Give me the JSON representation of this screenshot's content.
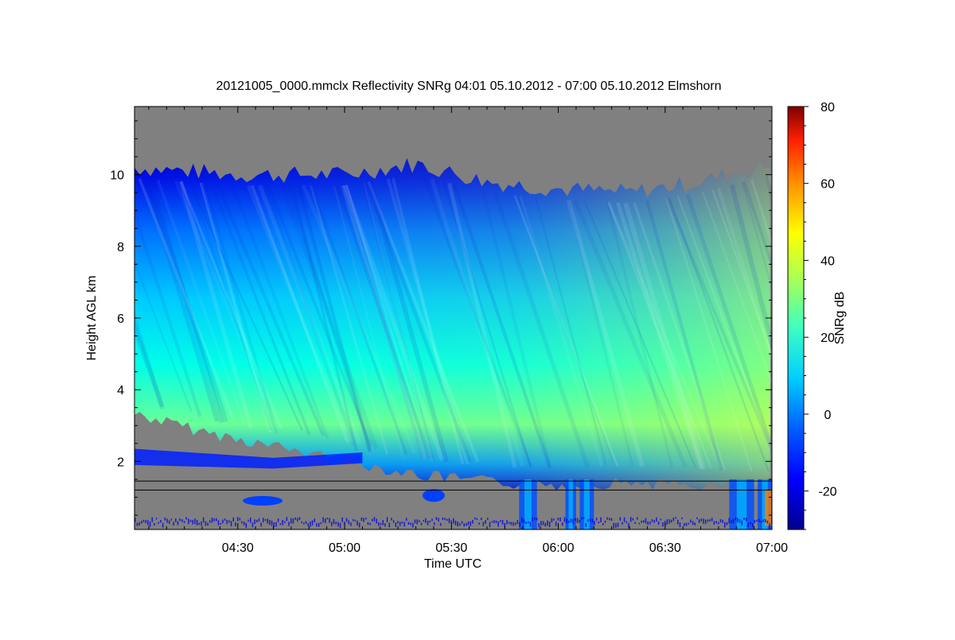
{
  "chart_data": {
    "type": "heatmap",
    "title": "20121005_0000.mmclx Reflectivity SNRg   04:01 05.10.2012 - 07:00 05.10.2012 Elmshorn",
    "xlabel": "Time UTC",
    "ylabel": "Height AGL km",
    "colorbar_label": "SNRg dB",
    "x_range": [
      "04:01",
      "07:00"
    ],
    "x_ticks": [
      "04:30",
      "05:00",
      "05:30",
      "06:00",
      "06:30",
      "07:00"
    ],
    "y_range": [
      0.1,
      11.9
    ],
    "y_ticks": [
      2,
      4,
      6,
      8,
      10
    ],
    "colorbar_range": [
      -30,
      80
    ],
    "colorbar_ticks": [
      -20,
      0,
      20,
      40,
      60,
      80
    ],
    "colormap": "jet",
    "missing_color": "#808080",
    "cloud_top_profile": [
      {
        "t": "04:01",
        "h": 10.2
      },
      {
        "t": "04:30",
        "h": 10.0
      },
      {
        "t": "05:00",
        "h": 10.0
      },
      {
        "t": "05:20",
        "h": 10.3
      },
      {
        "t": "05:40",
        "h": 9.8
      },
      {
        "t": "06:00",
        "h": 9.6
      },
      {
        "t": "06:20",
        "h": 9.5
      },
      {
        "t": "06:40",
        "h": 9.8
      },
      {
        "t": "07:00",
        "h": 10.3
      }
    ],
    "cloud_base_profile": [
      {
        "t": "04:01",
        "h": 3.5
      },
      {
        "t": "04:20",
        "h": 3.0
      },
      {
        "t": "04:40",
        "h": 2.6
      },
      {
        "t": "05:00",
        "h": 2.2
      },
      {
        "t": "05:20",
        "h": 1.8
      },
      {
        "t": "05:40",
        "h": 1.6
      },
      {
        "t": "06:00",
        "h": 1.5
      },
      {
        "t": "06:20",
        "h": 1.6
      },
      {
        "t": "06:40",
        "h": 1.5
      },
      {
        "t": "07:00",
        "h": 1.4
      }
    ],
    "reference_lines_km": [
      1.45,
      1.2
    ]
  }
}
